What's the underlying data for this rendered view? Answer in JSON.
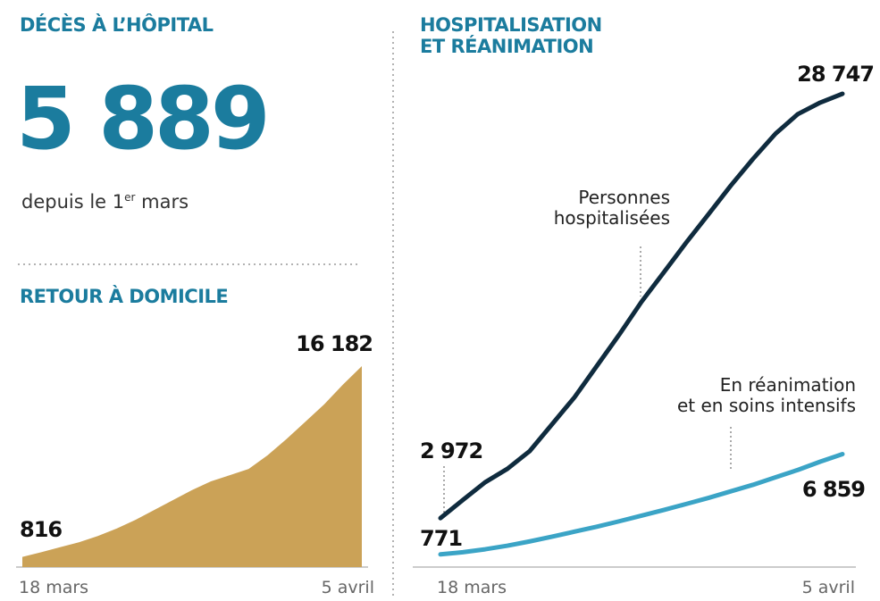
{
  "headline": {
    "title": "DÉCÈS À L’HÔPITAL",
    "value": "5 889",
    "caption": [
      "depuis le 1",
      "er",
      " mars"
    ]
  },
  "chart_data": [
    {
      "type": "area",
      "title": "RETOUR À DOMICILE",
      "color": "#cba257",
      "categories": [
        "18 mars",
        null,
        null,
        null,
        null,
        null,
        null,
        null,
        null,
        null,
        null,
        null,
        null,
        null,
        null,
        null,
        null,
        null,
        "5 avril"
      ],
      "values": [
        816,
        1200,
        1600,
        2000,
        2500,
        3100,
        3800,
        4600,
        5400,
        6200,
        6900,
        7400,
        7900,
        9000,
        10300,
        11700,
        13100,
        14700,
        16182
      ],
      "value_labels": [
        "816",
        null,
        null,
        null,
        null,
        null,
        null,
        null,
        null,
        null,
        null,
        null,
        null,
        null,
        null,
        null,
        null,
        null,
        "16 182"
      ]
    },
    {
      "type": "line",
      "title": "HOSPITALISATION\nET RÉANIMATION",
      "categories": [
        "18 mars",
        null,
        null,
        null,
        null,
        null,
        null,
        null,
        null,
        null,
        null,
        null,
        null,
        null,
        null,
        null,
        null,
        null,
        "5 avril"
      ],
      "series": [
        {
          "name": "Personnes\nhospitalisées",
          "color": "#0f2b3e",
          "values": [
            2972,
            4070,
            5150,
            5970,
            7050,
            8680,
            10310,
            12210,
            14110,
            16110,
            17900,
            19700,
            21430,
            23170,
            24800,
            26320,
            27510,
            28210,
            28747
          ],
          "value_labels": [
            "2 972",
            null,
            null,
            null,
            null,
            null,
            null,
            null,
            null,
            null,
            null,
            null,
            null,
            null,
            null,
            null,
            null,
            null,
            "28 747"
          ]
        },
        {
          "name": "En réanimation\net en soins intensifs",
          "color": "#3ba4c6",
          "values": [
            771,
            900,
            1080,
            1300,
            1560,
            1850,
            2150,
            2450,
            2780,
            3120,
            3470,
            3830,
            4200,
            4600,
            5000,
            5450,
            5900,
            6400,
            6859
          ],
          "value_labels": [
            "771",
            null,
            null,
            null,
            null,
            null,
            null,
            null,
            null,
            null,
            null,
            null,
            null,
            null,
            null,
            null,
            null,
            null,
            "6 859"
          ]
        }
      ]
    }
  ]
}
